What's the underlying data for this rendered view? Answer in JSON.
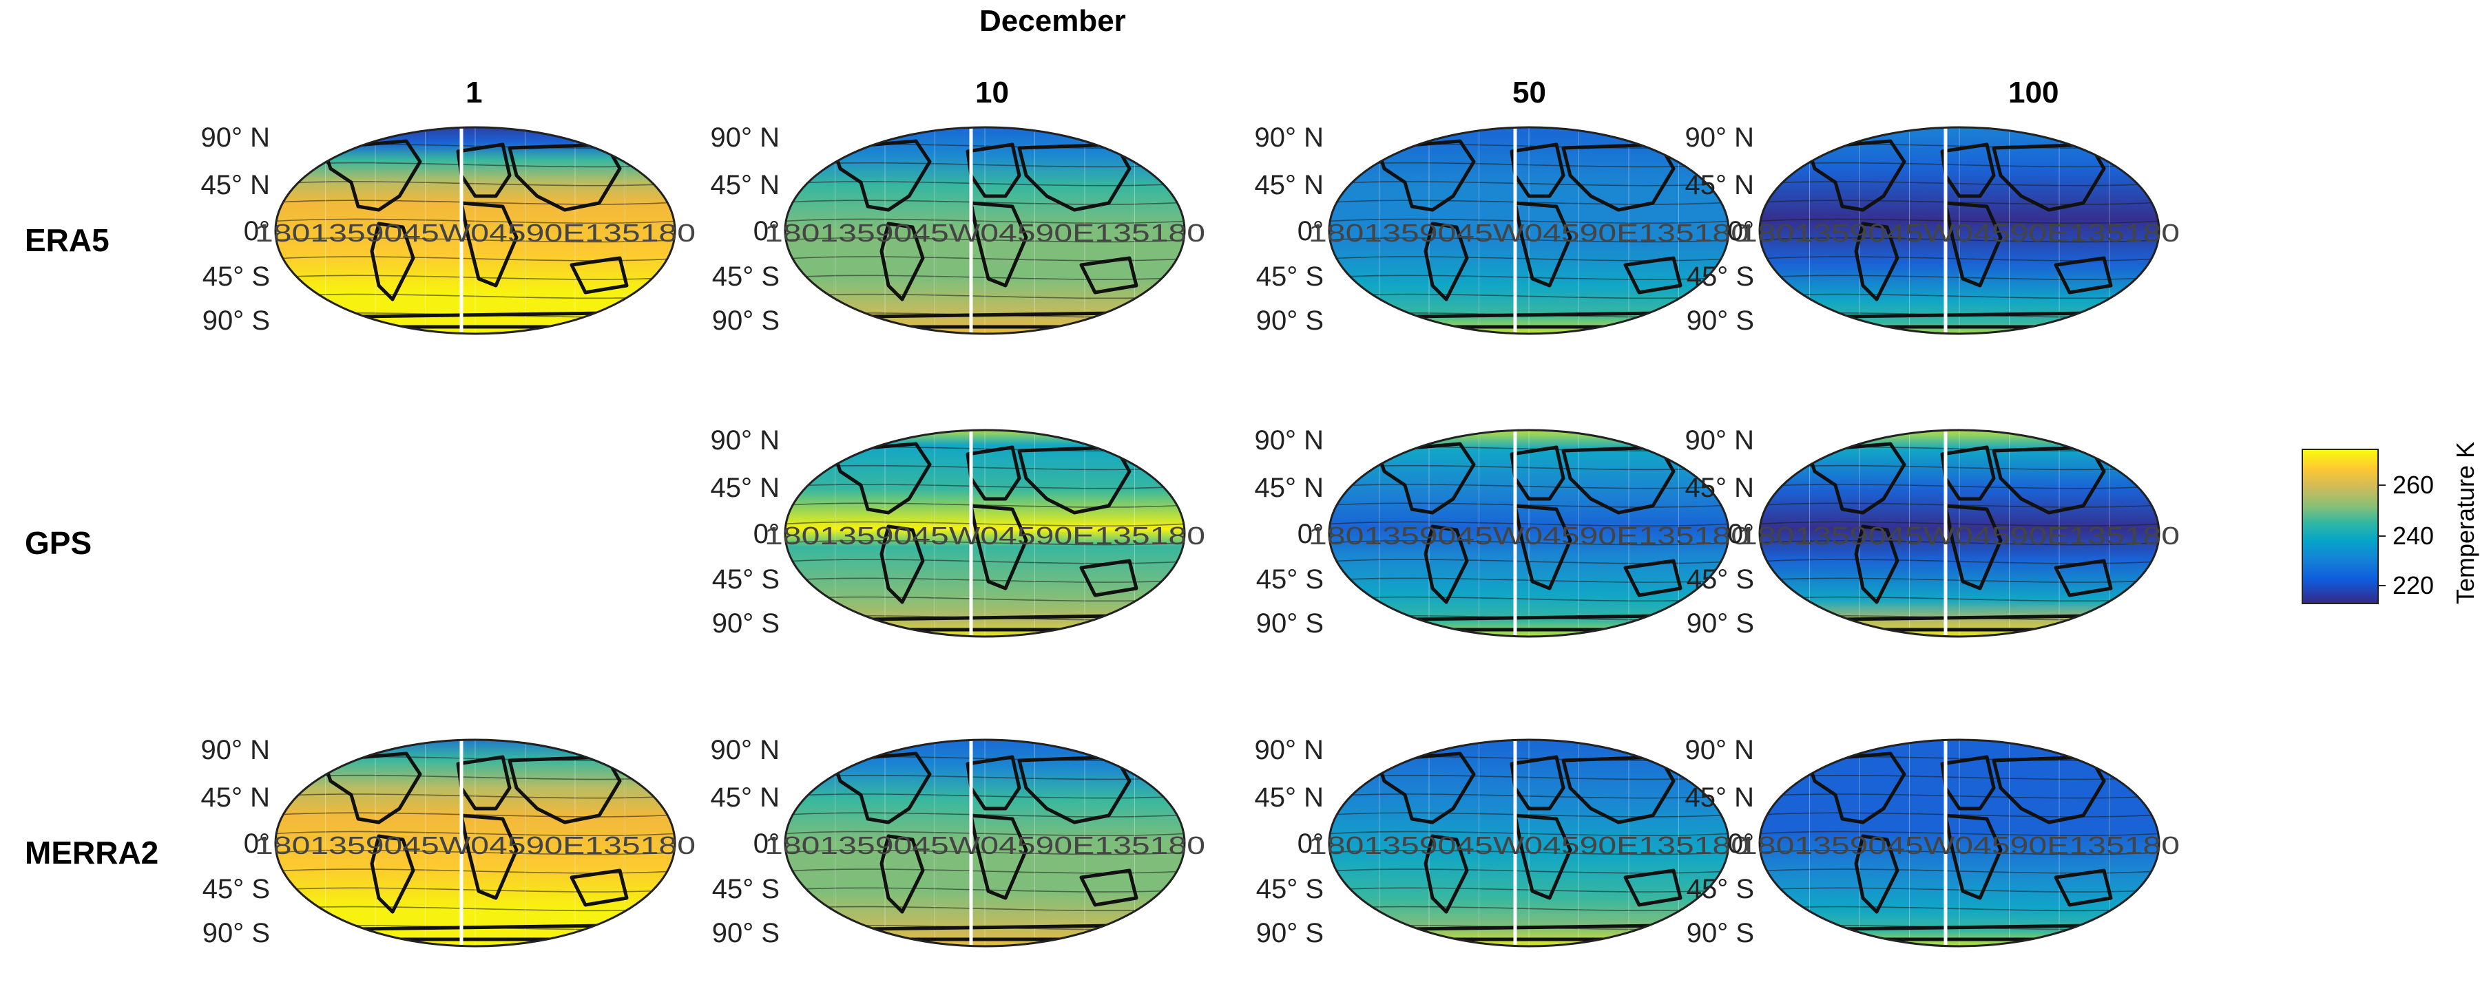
{
  "figure": {
    "month": "December",
    "columns": [
      "1",
      "10",
      "50",
      "100"
    ],
    "rows": [
      "ERA5",
      "GPS",
      "MERRA2"
    ]
  },
  "map_axes": {
    "lat_labels": [
      "90° N",
      "45° N",
      "0°",
      "45° S",
      "90° S"
    ],
    "lon_labels": [
      "180",
      "135",
      "90",
      "45",
      "W",
      "0",
      "45",
      "90",
      "E",
      "135",
      "180"
    ]
  },
  "colorbar": {
    "title": "Temperature K",
    "ticks": [
      "260",
      "240",
      "220"
    ],
    "colormap": "parula",
    "range": [
      210,
      272
    ]
  },
  "panels": [
    {
      "row": "ERA5",
      "col": "1",
      "style": "warm_era"
    },
    {
      "row": "ERA5",
      "col": "10",
      "style": "mid_era"
    },
    {
      "row": "ERA5",
      "col": "50",
      "style": "cool_era"
    },
    {
      "row": "ERA5",
      "col": "100",
      "style": "cold_era"
    },
    {
      "row": "GPS",
      "col": "10",
      "style": "mid_gps"
    },
    {
      "row": "GPS",
      "col": "50",
      "style": "cool_gps"
    },
    {
      "row": "GPS",
      "col": "100",
      "style": "cold_gps"
    },
    {
      "row": "MERRA2",
      "col": "1",
      "style": "warm_merra"
    },
    {
      "row": "MERRA2",
      "col": "10",
      "style": "mid_merra"
    },
    {
      "row": "MERRA2",
      "col": "50",
      "style": "cool_merra"
    },
    {
      "row": "MERRA2",
      "col": "100",
      "style": "cold_merra"
    }
  ]
}
